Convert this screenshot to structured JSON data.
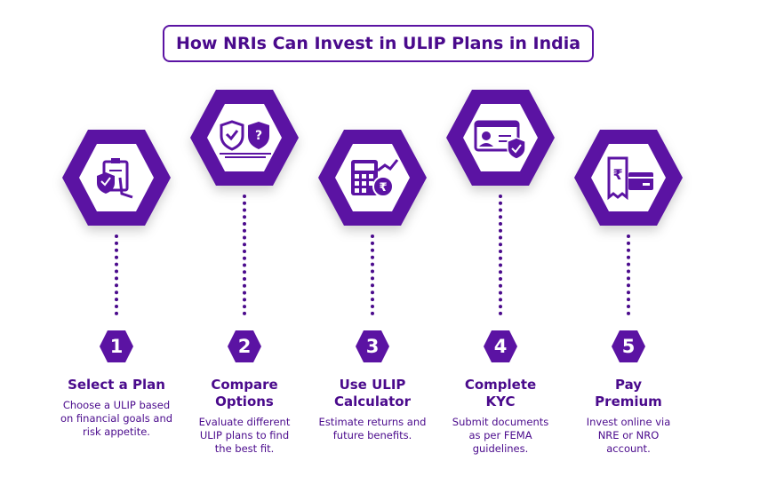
{
  "title": "How NRIs Can Invest in ULIP Plans in India",
  "colors": {
    "primary": "#5b13a3",
    "text": "#4a0a8c"
  },
  "steps": [
    {
      "number": "1",
      "title": "Select a Plan",
      "description": "Choose a ULIP based on financial goals and risk appetite.",
      "icon": "clipboard-shield-hand-icon"
    },
    {
      "number": "2",
      "title": "Compare Options",
      "description": "Evaluate different ULIP plans to find the best fit.",
      "icon": "shield-compare-icon"
    },
    {
      "number": "3",
      "title": "Use ULIP Calculator",
      "description": "Estimate returns and future benefits.",
      "icon": "calculator-rupee-icon"
    },
    {
      "number": "4",
      "title": "Complete KYC",
      "description": "Submit documents as per FEMA guidelines.",
      "icon": "id-card-shield-icon"
    },
    {
      "number": "5",
      "title": "Pay Premium",
      "description": "Invest online via NRE or NRO account.",
      "icon": "receipt-card-icon"
    }
  ]
}
